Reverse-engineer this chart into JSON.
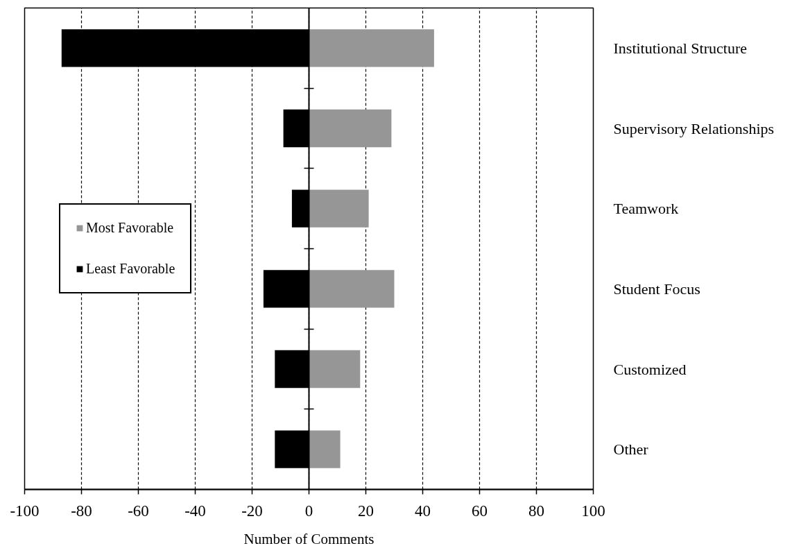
{
  "chart_data": {
    "type": "bar",
    "orientation": "horizontal",
    "stacked": true,
    "categories": [
      "Institutional Structure",
      "Supervisory Relationships",
      "Teamwork",
      "Student Focus",
      "Customized",
      "Other"
    ],
    "series": [
      {
        "name": "Most Favorable",
        "color": "#969696",
        "values": [
          44,
          29,
          21,
          30,
          18,
          11
        ]
      },
      {
        "name": "Least Favorable",
        "color": "#000000",
        "values": [
          -87,
          -9,
          -6,
          -16,
          -12,
          -12
        ]
      }
    ],
    "xlim": [
      -100,
      100
    ],
    "xticks": [
      -100,
      -80,
      -60,
      -40,
      -20,
      0,
      20,
      40,
      60,
      80,
      100
    ],
    "xlabel": "Number of Comments",
    "grid": "x",
    "legend": "left"
  }
}
